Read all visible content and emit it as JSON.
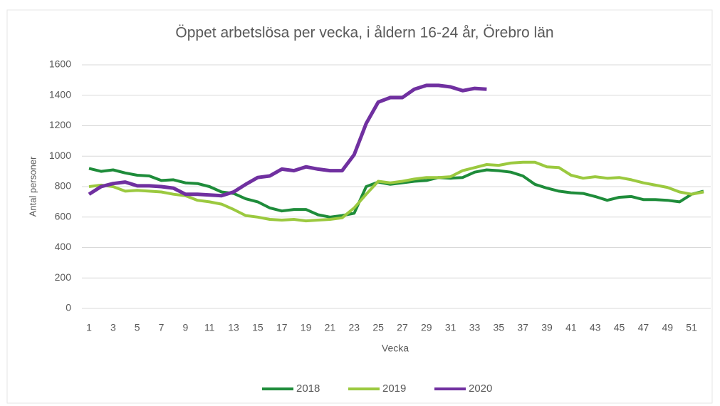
{
  "chart_data": {
    "type": "line",
    "title": "Öppet arbetslösa per vecka, i åldern 16-24 år, Örebro län",
    "x_label": "Vecka",
    "y_label": "Antal personer",
    "categories": [
      1,
      null,
      3,
      null,
      5,
      null,
      7,
      null,
      9,
      null,
      11,
      null,
      13,
      null,
      15,
      null,
      17,
      null,
      19,
      null,
      21,
      null,
      23,
      null,
      25,
      null,
      27,
      null,
      29,
      null,
      31,
      null,
      33,
      null,
      35,
      null,
      37,
      null,
      39,
      null,
      41,
      null,
      43,
      null,
      45,
      null,
      47,
      null,
      49,
      null,
      51,
      null
    ],
    "series": [
      {
        "name": "2018",
        "color": "#1e8c3a",
        "values": [
          920,
          900,
          910,
          890,
          875,
          870,
          840,
          845,
          825,
          820,
          800,
          765,
          755,
          720,
          700,
          660,
          640,
          650,
          650,
          615,
          600,
          610,
          625,
          800,
          830,
          815,
          825,
          835,
          840,
          860,
          855,
          860,
          895,
          910,
          905,
          895,
          870,
          815,
          790,
          770,
          760,
          755,
          735,
          710,
          730,
          735,
          715,
          715,
          710,
          700,
          750,
          770
        ]
      },
      {
        "name": "2019",
        "color": "#9bc93f",
        "values": [
          800,
          810,
          800,
          770,
          775,
          770,
          765,
          750,
          740,
          710,
          700,
          685,
          650,
          610,
          600,
          585,
          580,
          585,
          575,
          580,
          585,
          595,
          660,
          750,
          835,
          825,
          835,
          850,
          860,
          860,
          865,
          905,
          925,
          945,
          940,
          955,
          960,
          960,
          930,
          925,
          875,
          855,
          865,
          855,
          860,
          845,
          825,
          810,
          795,
          765,
          750,
          765
        ]
      },
      {
        "name": "2020",
        "color": "#7030a0",
        "values": [
          750,
          800,
          820,
          830,
          805,
          805,
          800,
          790,
          750,
          750,
          745,
          740,
          765,
          815,
          860,
          870,
          915,
          905,
          930,
          915,
          905,
          905,
          1010,
          1215,
          1355,
          1385,
          1385,
          1440,
          1465,
          1465,
          1455,
          1430,
          1445,
          1440,
          null,
          null,
          null,
          null,
          null,
          null,
          null,
          null,
          null,
          null,
          null,
          null,
          null,
          null,
          null,
          null,
          null,
          null
        ]
      }
    ],
    "ylim": [
      0,
      1600
    ],
    "yticks": [
      0,
      200,
      400,
      600,
      800,
      1000,
      1200,
      1400,
      1600
    ],
    "grid": true,
    "legend": "bottom"
  }
}
